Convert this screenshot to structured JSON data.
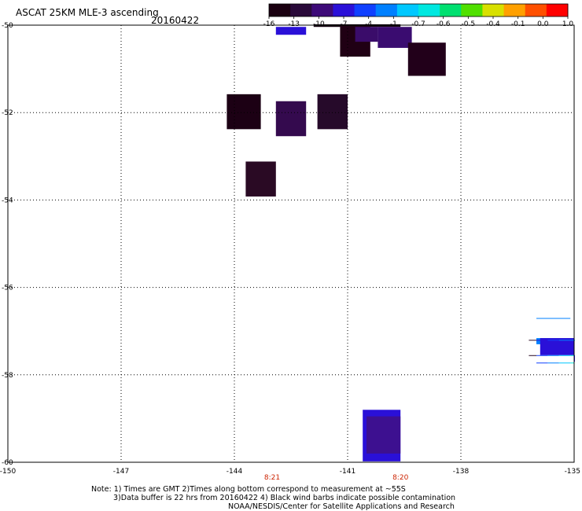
{
  "header": {
    "title": "ASCAT 25KM MLE-3 ascending",
    "date": "20160422"
  },
  "colorbar": {
    "labels": [
      "-16",
      "-13",
      "-10",
      "-7",
      "-4",
      "-1",
      "-0.7",
      "-0.6",
      "-0.5",
      "-0.4",
      "-0.1",
      "0.0",
      "1.0"
    ],
    "colors": [
      "#1a0010",
      "#2a0a3a",
      "#3d0a78",
      "#2a10d8",
      "#1040ff",
      "#0080ff",
      "#00c8ff",
      "#00e8e0",
      "#00e070",
      "#50e000",
      "#d8e000",
      "#ffa000",
      "#ff5000",
      "#ff0000"
    ]
  },
  "map": {
    "lon_range": [
      -150,
      -135
    ],
    "lat_range": [
      -60,
      -50
    ],
    "lon_ticks": [
      "-150",
      "-147",
      "-144",
      "-141",
      "-138",
      "-135"
    ],
    "lat_ticks": [
      "-50",
      "-52",
      "-54",
      "-56",
      "-58",
      "-60"
    ],
    "time_labels": [
      {
        "lon": -143,
        "text": "8:21"
      },
      {
        "lon": -139.6,
        "text": "8:20"
      }
    ],
    "cells": [
      {
        "lon0": -142.9,
        "lon1": -142.1,
        "lat0": -50.22,
        "lat1": -50.04,
        "color": "#2a10d8"
      },
      {
        "lon0": -141.9,
        "lon1": -139.6,
        "lat0": -50.04,
        "lat1": -49.98,
        "color": "#140010"
      },
      {
        "lon0": -141.2,
        "lon1": -140.4,
        "lat0": -50.72,
        "lat1": -50.0,
        "color": "#200014"
      },
      {
        "lon0": -140.8,
        "lon1": -140.2,
        "lat0": -50.38,
        "lat1": -50.04,
        "color": "#3a0c6a"
      },
      {
        "lon0": -140.2,
        "lon1": -139.3,
        "lat0": -50.52,
        "lat1": -50.04,
        "color": "#3a0c70"
      },
      {
        "lon0": -139.4,
        "lon1": -138.4,
        "lat0": -51.16,
        "lat1": -50.4,
        "color": "#22001a"
      },
      {
        "lon0": -144.2,
        "lon1": -143.3,
        "lat0": -52.38,
        "lat1": -51.58,
        "color": "#1c0014"
      },
      {
        "lon0": -142.9,
        "lon1": -142.1,
        "lat0": -52.54,
        "lat1": -51.74,
        "color": "#340a4e"
      },
      {
        "lon0": -141.8,
        "lon1": -141.0,
        "lat0": -52.38,
        "lat1": -51.58,
        "color": "#260a2a"
      },
      {
        "lon0": -143.7,
        "lon1": -142.9,
        "lat0": -53.92,
        "lat1": -53.12,
        "color": "#2a0a24"
      },
      {
        "lon0": -136.0,
        "lon1": -135.0,
        "lat0": -57.3,
        "lat1": -57.16,
        "color": "#0080ff"
      },
      {
        "lon0": -135.9,
        "lon1": -135.0,
        "lat0": -57.55,
        "lat1": -57.16,
        "color": "#2a10d8"
      },
      {
        "lon0": -135.0,
        "lon1": -135.0,
        "lat0": -57.7,
        "lat1": -57.55,
        "color": "#2a10d8"
      },
      {
        "lon0": -140.6,
        "lon1": -139.6,
        "lat0": -59.98,
        "lat1": -58.8,
        "color": "#2a10d8"
      },
      {
        "lon0": -140.5,
        "lon1": -139.6,
        "lat0": -59.8,
        "lat1": -58.95,
        "color": "#3d1090"
      }
    ],
    "swath": {
      "rows": [
        {
          "lat0": -56.52,
          "lat1": -56.7,
          "cells": [
            {
              "lon0": -136.0,
              "lon1": -135.1,
              "color": "#0080ff"
            }
          ]
        },
        {
          "lat0": -56.7,
          "lat1": -57.2,
          "cells": [
            {
              "lon0": -136.2,
              "lon1": -136.0,
              "color": "#2a0a24"
            },
            {
              "lon0": -136.0,
              "lon1": -135.7,
              "color": "#2a10d8"
            },
            {
              "lon0": -135.7,
              "lon1": -135.4,
              "color": "#1040ff"
            },
            {
              "lon0": -135.4,
              "lon1": -135.0,
              "color": "#0080ff"
            },
            {
              "lon0": -135.0,
              "lon1": -135.0,
              "color": "#00c8ff"
            }
          ]
        },
        {
          "lat0": -57.2,
          "lat1": -57.55,
          "cells": [
            {
              "lon0": -136.2,
              "lon1": -136.0,
              "color": "#2a0a24"
            },
            {
              "lon0": -136.0,
              "lon1": -135.7,
              "color": "#1040ff"
            },
            {
              "lon0": -135.7,
              "lon1": -135.4,
              "color": "#0080ff"
            },
            {
              "lon0": -135.4,
              "lon1": -135.1,
              "color": "#00c8ff"
            },
            {
              "lon0": -135.1,
              "lon1": -135.0,
              "color": "#00e8e0"
            }
          ]
        },
        {
          "lat0": -57.55,
          "lat1": -57.72,
          "cells": [
            {
              "lon0": -136.0,
              "lon1": -135.7,
              "color": "#1040ff"
            },
            {
              "lon0": -135.7,
              "lon1": -135.4,
              "color": "#0080ff"
            },
            {
              "lon0": -135.4,
              "lon1": -135.1,
              "color": "#00c8ff"
            },
            {
              "lon0": -135.1,
              "lon1": -135.0,
              "color": "#00e8e0"
            }
          ]
        }
      ]
    }
  },
  "footer": {
    "line1": "Note: 1) Times are GMT 2)Times along bottom correspond to measurement at ~55S",
    "line2": "3)Data buffer is 22 hrs from 20160422 4) Black wind barbs indicate possible contamination",
    "line3": "NOAA/NESDIS/Center for Satellite Applications and Research"
  }
}
